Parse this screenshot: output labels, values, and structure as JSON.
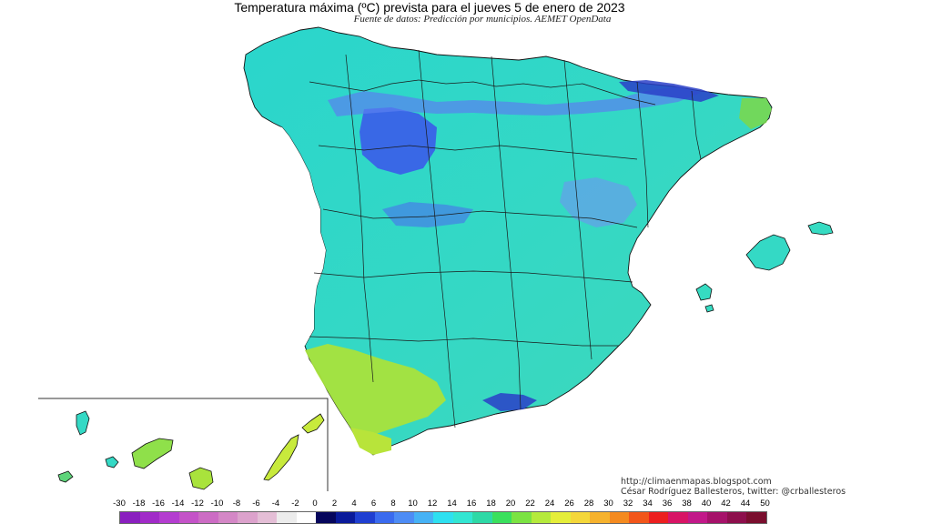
{
  "title": "Temperatura máxima (ºC) prevista para el jueves 5 de enero de 2023",
  "subtitle": "Fuente de datos: Predicción por municipios. AEMET OpenData",
  "credits": {
    "url": "http://climaenmapas.blogspot.com",
    "author": "César Rodríguez Ballesteros, twitter: @crballesteros"
  },
  "legend": {
    "labels": [
      "-30",
      "-18",
      "-16",
      "-14",
      "-12",
      "-10",
      "-8",
      "-6",
      "-4",
      "-2",
      "0",
      "2",
      "4",
      "6",
      "8",
      "10",
      "12",
      "14",
      "16",
      "18",
      "20",
      "22",
      "24",
      "26",
      "28",
      "30",
      "32",
      "34",
      "36",
      "38",
      "40",
      "42",
      "44",
      "50"
    ],
    "colors": [
      "#8a1fbf",
      "#a12bc8",
      "#b43dd0",
      "#c453c8",
      "#cc6cc4",
      "#d487c6",
      "#dca2cc",
      "#e4bed6",
      "#ececec",
      "#ffffff",
      "#06065c",
      "#0a1a9a",
      "#1f3fd1",
      "#3a6bef",
      "#4d8cf5",
      "#46b2f5",
      "#2ee0f0",
      "#33e6d2",
      "#2ed9a6",
      "#3ae05d",
      "#7be342",
      "#b5ea3c",
      "#e5ee3a",
      "#f4d73a",
      "#f6b22d",
      "#f48a1f",
      "#f2561a",
      "#ec1f1f",
      "#d81465",
      "#c21889",
      "#a6126a",
      "#8d0f4c",
      "#7a0e2e"
    ]
  },
  "map": {
    "region": "España peninsular, Baleares y Canarias",
    "base_color": "#2fd9c6",
    "cold_color": "#3a62e8",
    "warm_color": "#a9e33c"
  }
}
